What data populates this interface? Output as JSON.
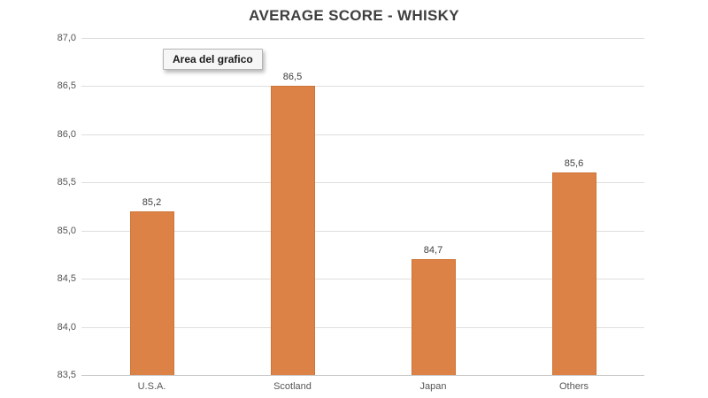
{
  "tooltip": {
    "label": "Area del grafico"
  },
  "colors": {
    "bar_fill": "#DC8246",
    "bar_border": "#CE7434",
    "gridline": "#DEDEDE",
    "axis_line": "#C9C9C9",
    "title": "#3F3F3F",
    "tick_label": "#555555",
    "value_label": "#3F3F3F",
    "tooltip_bg": "#F6F6F6",
    "tooltip_border": "#B4B4B4"
  },
  "chart_data": {
    "type": "bar",
    "title": "AVERAGE SCORE - WHISKY",
    "categories": [
      "U.S.A.",
      "Scotland",
      "Japan",
      "Others"
    ],
    "values": [
      85.2,
      86.5,
      84.7,
      85.6
    ],
    "value_labels": [
      "85,2",
      "86,5",
      "84,7",
      "85,6"
    ],
    "ylim": [
      83.5,
      87.0
    ],
    "ytick_step": 0.5,
    "ytick_labels": [
      "87,0",
      "86,5",
      "86,0",
      "85,5",
      "85,0",
      "84,5",
      "84,0",
      "83,5"
    ],
    "decimal_separator": ",",
    "grid": true,
    "legend": false
  }
}
